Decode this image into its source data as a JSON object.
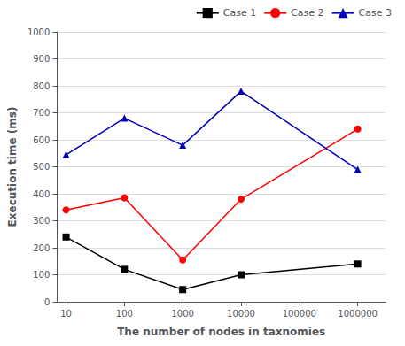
{
  "chart_data": {
    "type": "line",
    "x": [
      10,
      100,
      1000,
      10000,
      1000000
    ],
    "series": [
      {
        "name": "Case 1",
        "color": "#000000",
        "marker": "square",
        "values": [
          240,
          120,
          45,
          100,
          140
        ]
      },
      {
        "name": "Case 2",
        "color": "#ff0000",
        "marker": "circle",
        "values": [
          340,
          385,
          155,
          380,
          640
        ]
      },
      {
        "name": "Case 3",
        "color": "#0000bb",
        "marker": "triangle",
        "values": [
          545,
          680,
          580,
          780,
          490
        ]
      }
    ],
    "xlabel": "The number of nodes in taxnomies",
    "ylabel": "Execution time (ms)",
    "xlim": [
      7,
      3000000
    ],
    "ylim": [
      0,
      1000
    ],
    "xticks": [
      10,
      100,
      1000,
      10000,
      100000,
      1000000
    ],
    "yticks": [
      0,
      100,
      200,
      300,
      400,
      500,
      600,
      700,
      800,
      900,
      1000
    ],
    "log": "x",
    "grid": true,
    "legend": "upper right"
  }
}
